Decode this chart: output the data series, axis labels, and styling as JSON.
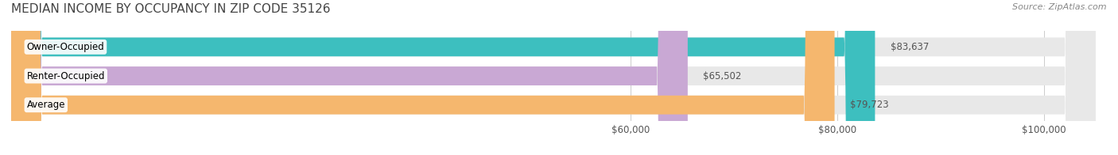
{
  "title": "MEDIAN INCOME BY OCCUPANCY IN ZIP CODE 35126",
  "source": "Source: ZipAtlas.com",
  "categories": [
    "Owner-Occupied",
    "Renter-Occupied",
    "Average"
  ],
  "values": [
    83637,
    65502,
    79723
  ],
  "labels": [
    "$83,637",
    "$65,502",
    "$79,723"
  ],
  "bar_colors": [
    "#3dbfbf",
    "#c9a8d4",
    "#f5b76e"
  ],
  "bar_bg_color": "#e8e8e8",
  "tick_labels": [
    "$60,000",
    "$80,000",
    "$100,000"
  ],
  "tick_values": [
    60000,
    80000,
    100000
  ],
  "xmin": 0,
  "xmax": 105000,
  "title_fontsize": 11,
  "source_fontsize": 8,
  "label_fontsize": 8.5,
  "tick_fontsize": 8.5,
  "bar_label_fontsize": 8.5,
  "figsize": [
    14.06,
    1.96
  ],
  "dpi": 100
}
